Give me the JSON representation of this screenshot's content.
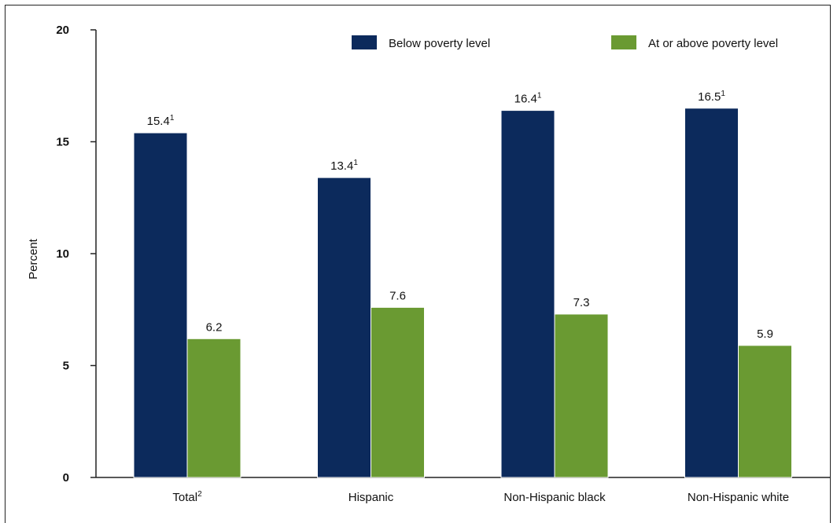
{
  "chart_data": {
    "type": "bar",
    "ylabel": "Percent",
    "ylim": [
      0,
      20
    ],
    "yticks": [
      "0",
      "5",
      "10",
      "15",
      "20"
    ],
    "categories": [
      {
        "label": "Total",
        "sup": "2"
      },
      {
        "label": "Hispanic",
        "sup": ""
      },
      {
        "label": "Non-Hispanic black",
        "sup": ""
      },
      {
        "label": "Non-Hispanic white",
        "sup": ""
      }
    ],
    "series": [
      {
        "name": "Below poverty level",
        "color": "#0c2a5c",
        "values": [
          15.4,
          13.4,
          16.4,
          16.5
        ],
        "labels": [
          "15.4",
          "13.4",
          "16.4",
          "16.5"
        ],
        "label_sup": [
          "1",
          "1",
          "1",
          "1"
        ]
      },
      {
        "name": "At or above poverty level",
        "color": "#6a9a32",
        "values": [
          6.2,
          7.6,
          7.3,
          5.9
        ],
        "labels": [
          "6.2",
          "7.6",
          "7.3",
          "5.9"
        ],
        "label_sup": [
          "",
          "",
          "",
          ""
        ]
      }
    ],
    "legend_position": "top-right",
    "grid": false
  }
}
